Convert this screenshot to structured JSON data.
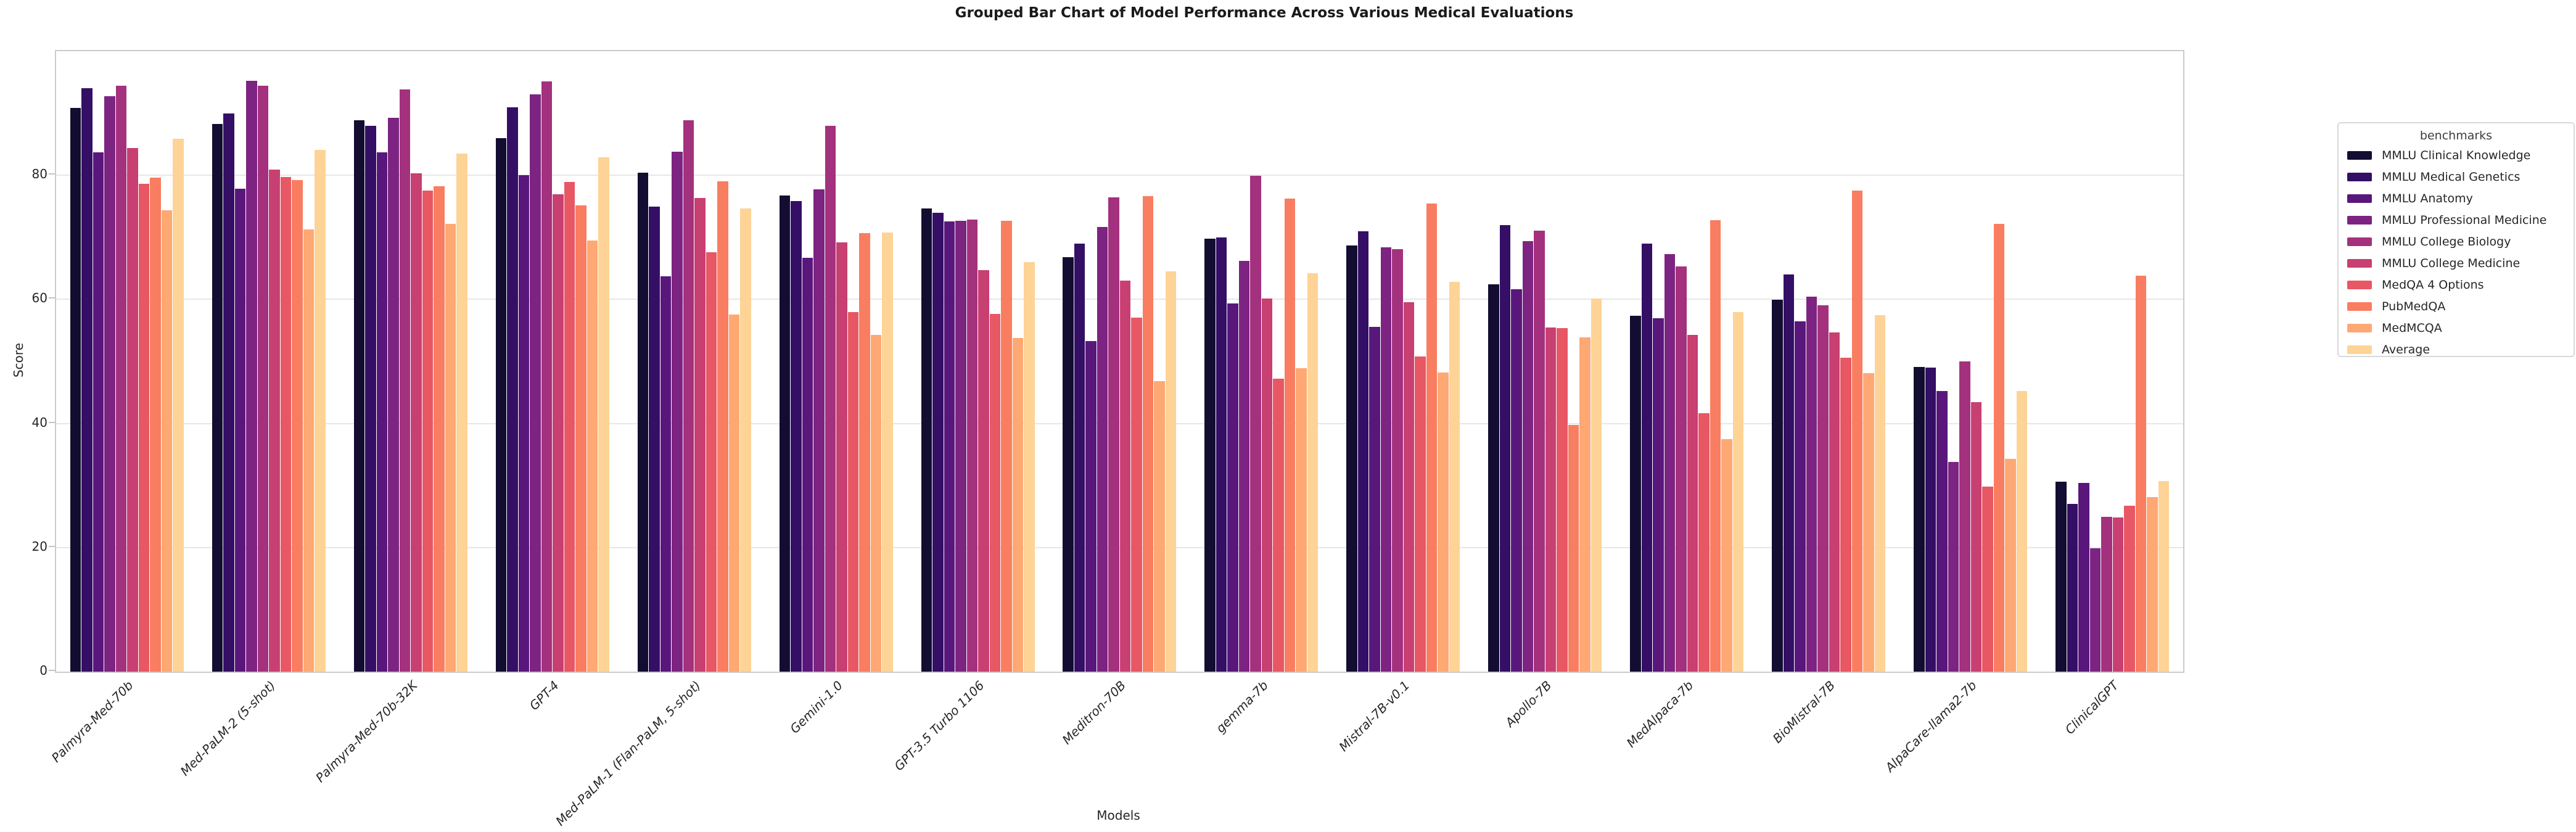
{
  "title": "Grouped Bar Chart of Model Performance Across Various Medical Evaluations",
  "axes": {
    "xlabel": "Models",
    "ylabel": "Score"
  },
  "legend": {
    "title": "benchmarks"
  },
  "chart_data": {
    "type": "bar",
    "title": "Grouped Bar Chart of Model Performance Across Various Medical Evaluations",
    "xlabel": "Models",
    "ylabel": "Score",
    "ylim": [
      0,
      100
    ],
    "yticks": [
      0,
      20,
      40,
      60,
      80
    ],
    "grid": true,
    "legend_title": "benchmarks",
    "legend_position": "right-outside",
    "palette": "magma",
    "categories": [
      "Palmyra-Med-70b",
      "Med-PaLM-2 (5-shot)",
      "Palmyra-Med-70b-32K",
      "GPT-4",
      "Med-PaLM-1 (Flan-PaLM, 5-shot)",
      "Gemini-1.0",
      "GPT-3.5 Turbo 1106",
      "Meditron-70B",
      "gemma-7b",
      "Mistral-7B-v0.1",
      "Apollo-7B",
      "MedAlpaca-7b",
      "BioMistral-7B",
      "AlpaCare-llama2-7b",
      "ClinicalGPT"
    ],
    "series": [
      {
        "name": "MMLU Clinical Knowledge",
        "color": "#120d31",
        "values": [
          90.9,
          88.3,
          88.9,
          86.0,
          80.4,
          76.7,
          74.7,
          66.8,
          69.8,
          68.7,
          62.4,
          57.4,
          59.9,
          49.1,
          30.6
        ]
      },
      {
        "name": "MMLU Medical Genetics",
        "color": "#340f65",
        "values": [
          94.0,
          90.0,
          88.0,
          91.0,
          75.0,
          75.8,
          74.0,
          69.0,
          70.0,
          71.0,
          72.0,
          69.0,
          64.0,
          49.0,
          27.0
        ]
      },
      {
        "name": "MMLU Anatomy",
        "color": "#59177c",
        "values": [
          83.7,
          77.8,
          83.7,
          80.0,
          63.7,
          66.7,
          72.6,
          53.3,
          59.3,
          55.6,
          61.6,
          57.0,
          56.5,
          45.2,
          30.4
        ]
      },
      {
        "name": "MMLU Professional Medicine",
        "color": "#7d2381",
        "values": [
          92.7,
          95.2,
          89.3,
          93.0,
          83.8,
          77.7,
          72.7,
          71.7,
          66.2,
          68.4,
          69.4,
          67.3,
          60.4,
          33.8,
          19.9
        ]
      },
      {
        "name": "MMLU College Biology",
        "color": "#a3317d",
        "values": [
          94.4,
          94.4,
          93.8,
          95.1,
          88.9,
          88.0,
          72.9,
          76.4,
          79.9,
          68.1,
          71.1,
          65.3,
          59.0,
          50.0,
          25.0
        ]
      },
      {
        "name": "MMLU College Medicine",
        "color": "#c83f72",
        "values": [
          84.4,
          80.9,
          80.3,
          76.9,
          76.3,
          69.2,
          64.7,
          63.0,
          60.1,
          59.5,
          55.5,
          54.3,
          54.7,
          43.4,
          24.9
        ]
      },
      {
        "name": "MedQA 4 Options",
        "color": "#e75764",
        "values": [
          78.6,
          79.7,
          77.5,
          78.9,
          67.6,
          58.0,
          57.7,
          57.1,
          47.2,
          50.8,
          55.4,
          41.7,
          50.6,
          29.8,
          26.7
        ]
      },
      {
        "name": "PubMedQA",
        "color": "#f97d60",
        "values": [
          79.6,
          79.2,
          78.2,
          75.2,
          79.0,
          70.7,
          72.7,
          76.6,
          76.2,
          75.4,
          39.8,
          72.8,
          77.5,
          72.2,
          63.8
        ]
      },
      {
        "name": "MedMCQA",
        "color": "#fea874",
        "values": [
          74.4,
          71.3,
          72.2,
          69.5,
          57.6,
          54.3,
          53.8,
          46.8,
          48.9,
          48.2,
          53.9,
          37.5,
          48.1,
          34.3,
          28.1
        ]
      },
      {
        "name": "Average",
        "color": "#fed396",
        "values": [
          85.9,
          84.1,
          83.5,
          82.9,
          74.7,
          70.8,
          66.0,
          64.5,
          64.2,
          62.8,
          60.1,
          58.0,
          57.5,
          45.2,
          30.7
        ]
      }
    ]
  }
}
